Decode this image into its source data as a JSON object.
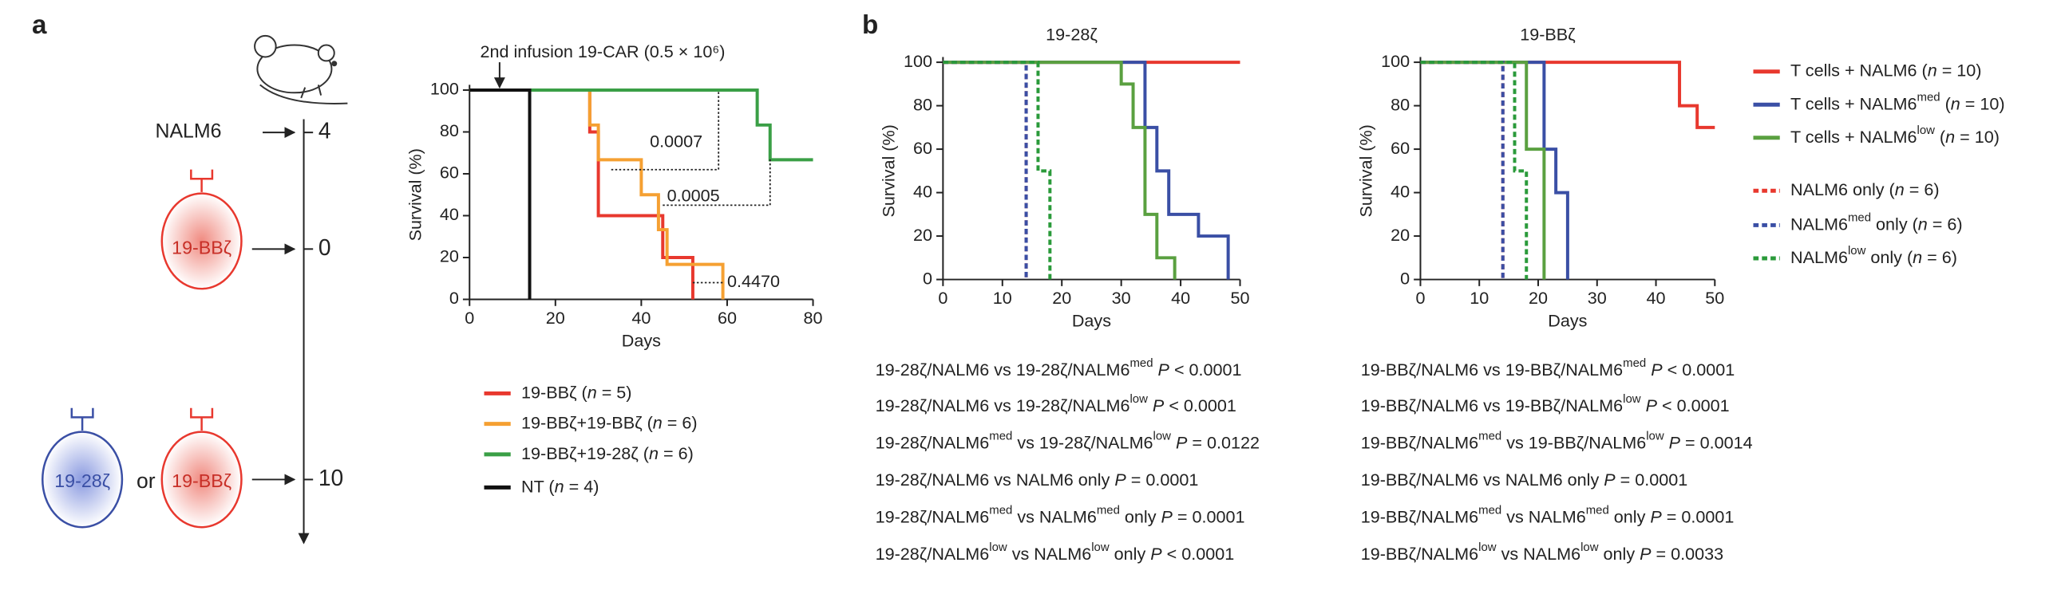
{
  "panel_labels": [
    "a",
    "b"
  ],
  "diagram": {
    "target": "NALM6",
    "times": [
      "4",
      "0",
      "10"
    ],
    "cell_top": "19-BBζ",
    "cell_left": "19-28ζ",
    "or": "or",
    "cell_right": "19-BBζ"
  },
  "statistics": [
    [
      "19-28ζ/NALM6 vs 19-28ζ/NALM6med P < 0.0001",
      "19-28ζ/NALM6 vs 19-28ζ/NALM6low P < 0.0001",
      "19-28ζ/NALM6med vs 19-28ζ/NALM6low P = 0.0122",
      "19-28ζ/NALM6 vs NALM6 only P = 0.0001",
      "19-28ζ/NALM6med vs NALM6med only P = 0.0001",
      "19-28ζ/NALM6low vs NALM6low only P < 0.0001"
    ],
    [
      "19-BBζ/NALM6 vs 19-BBζ/NALM6med P < 0.0001",
      "19-BBζ/NALM6 vs 19-BBζ/NALM6low P < 0.0001",
      "19-BBζ/NALM6med vs 19-BBζ/NALM6low P = 0.0014",
      "19-BBζ/NALM6 vs NALM6 only P = 0.0001",
      "19-BBζ/NALM6med vs NALM6med only P = 0.0001",
      "19-BBζ/NALM6low vs NALM6low only P = 0.0033"
    ]
  ],
  "chart_data": [
    {
      "type": "step",
      "xlabel": "Days",
      "ylabel": "Survival (%)",
      "xlim": [
        0,
        80
      ],
      "xticks": [
        0,
        20,
        40,
        60,
        80
      ],
      "ylim": [
        0,
        100
      ],
      "yticks": [
        0,
        20,
        40,
        60,
        80,
        100
      ],
      "legend": true,
      "annotations": [
        "2nd infusion 19-CAR (0.5 × 10⁶)",
        "0.0007",
        "0.0005",
        "0.4470"
      ],
      "series": [
        {
          "name": "19-BBζ (n = 5)",
          "color": "#e8382e",
          "x": [
            0,
            28,
            30,
            45,
            52
          ],
          "values": [
            100,
            80,
            40,
            20,
            0
          ]
        },
        {
          "name": "19-BBζ+19-BBζ (n = 6)",
          "color": "#f5a032",
          "x": [
            0,
            28,
            30,
            40,
            44,
            46,
            59
          ],
          "values": [
            100,
            83.3,
            66.7,
            50,
            33.3,
            16.7,
            0
          ]
        },
        {
          "name": "19-BBζ+19-28ζ (n = 6)",
          "color": "#3a9f46",
          "x": [
            0,
            67,
            70,
            80
          ],
          "values": [
            100,
            83.3,
            66.7,
            66.7
          ]
        },
        {
          "name": "NT (n = 4)",
          "color": "#111111",
          "x": [
            0,
            14
          ],
          "values": [
            100,
            0
          ]
        }
      ]
    },
    {
      "type": "step",
      "title": "19-28ζ",
      "xlabel": "Days",
      "ylabel": "Survival (%)",
      "xlim": [
        0,
        50
      ],
      "xticks": [
        0,
        10,
        20,
        30,
        40,
        50
      ],
      "ylim": [
        0,
        100
      ],
      "yticks": [
        0,
        20,
        40,
        60,
        80,
        100
      ],
      "legend": false,
      "series": [
        {
          "color": "#e8382e",
          "x": [
            0,
            50
          ],
          "values": [
            100,
            100
          ]
        },
        {
          "color": "#3a4fa5",
          "x": [
            0,
            34,
            36,
            38,
            43,
            48
          ],
          "values": [
            100,
            70,
            50,
            30,
            20,
            0
          ]
        },
        {
          "color": "#5aa040",
          "x": [
            0,
            30,
            32,
            34,
            36,
            39
          ],
          "values": [
            100,
            90,
            70,
            30,
            10,
            0
          ]
        },
        {
          "color": "#e8382e",
          "dashed": true,
          "x": [
            0,
            14
          ],
          "values": [
            100,
            0
          ]
        },
        {
          "color": "#3a4fa5",
          "dashed": true,
          "x": [
            0,
            14
          ],
          "values": [
            100,
            0
          ]
        },
        {
          "color": "#2a9a3a",
          "dashed": true,
          "x": [
            0,
            16,
            18
          ],
          "values": [
            100,
            50,
            0
          ]
        }
      ]
    },
    {
      "type": "step",
      "title": "19-BBζ",
      "xlabel": "Days",
      "ylabel": "Survival (%)",
      "xlim": [
        0,
        50
      ],
      "xticks": [
        0,
        10,
        20,
        30,
        40,
        50
      ],
      "ylim": [
        0,
        100
      ],
      "yticks": [
        0,
        20,
        40,
        60,
        80,
        100
      ],
      "legend": true,
      "series": [
        {
          "name": "T cells + NALM6  (n = 10)",
          "color": "#e8382e",
          "x": [
            0,
            44,
            47,
            50
          ],
          "values": [
            100,
            80,
            70,
            70
          ]
        },
        {
          "name": "T cells + NALM6med  (n = 10)",
          "color": "#3a4fa5",
          "x": [
            0,
            21,
            23,
            25
          ],
          "values": [
            100,
            60,
            40,
            0
          ]
        },
        {
          "name": "T cells + NALM6low  (n = 10)",
          "color": "#5aa040",
          "x": [
            0,
            18,
            21
          ],
          "values": [
            100,
            60,
            0
          ]
        },
        {
          "name": "NALM6 only  (n = 6)",
          "color": "#e8382e",
          "dashed": true,
          "x": [
            0,
            14
          ],
          "values": [
            100,
            0
          ]
        },
        {
          "name": "NALM6med only (n = 6)",
          "color": "#3a4fa5",
          "dashed": true,
          "x": [
            0,
            14
          ],
          "values": [
            100,
            0
          ]
        },
        {
          "name": "NALM6low only (n = 6)",
          "color": "#2a9a3a",
          "dashed": true,
          "x": [
            0,
            16,
            18
          ],
          "values": [
            100,
            50,
            0
          ]
        }
      ]
    }
  ]
}
